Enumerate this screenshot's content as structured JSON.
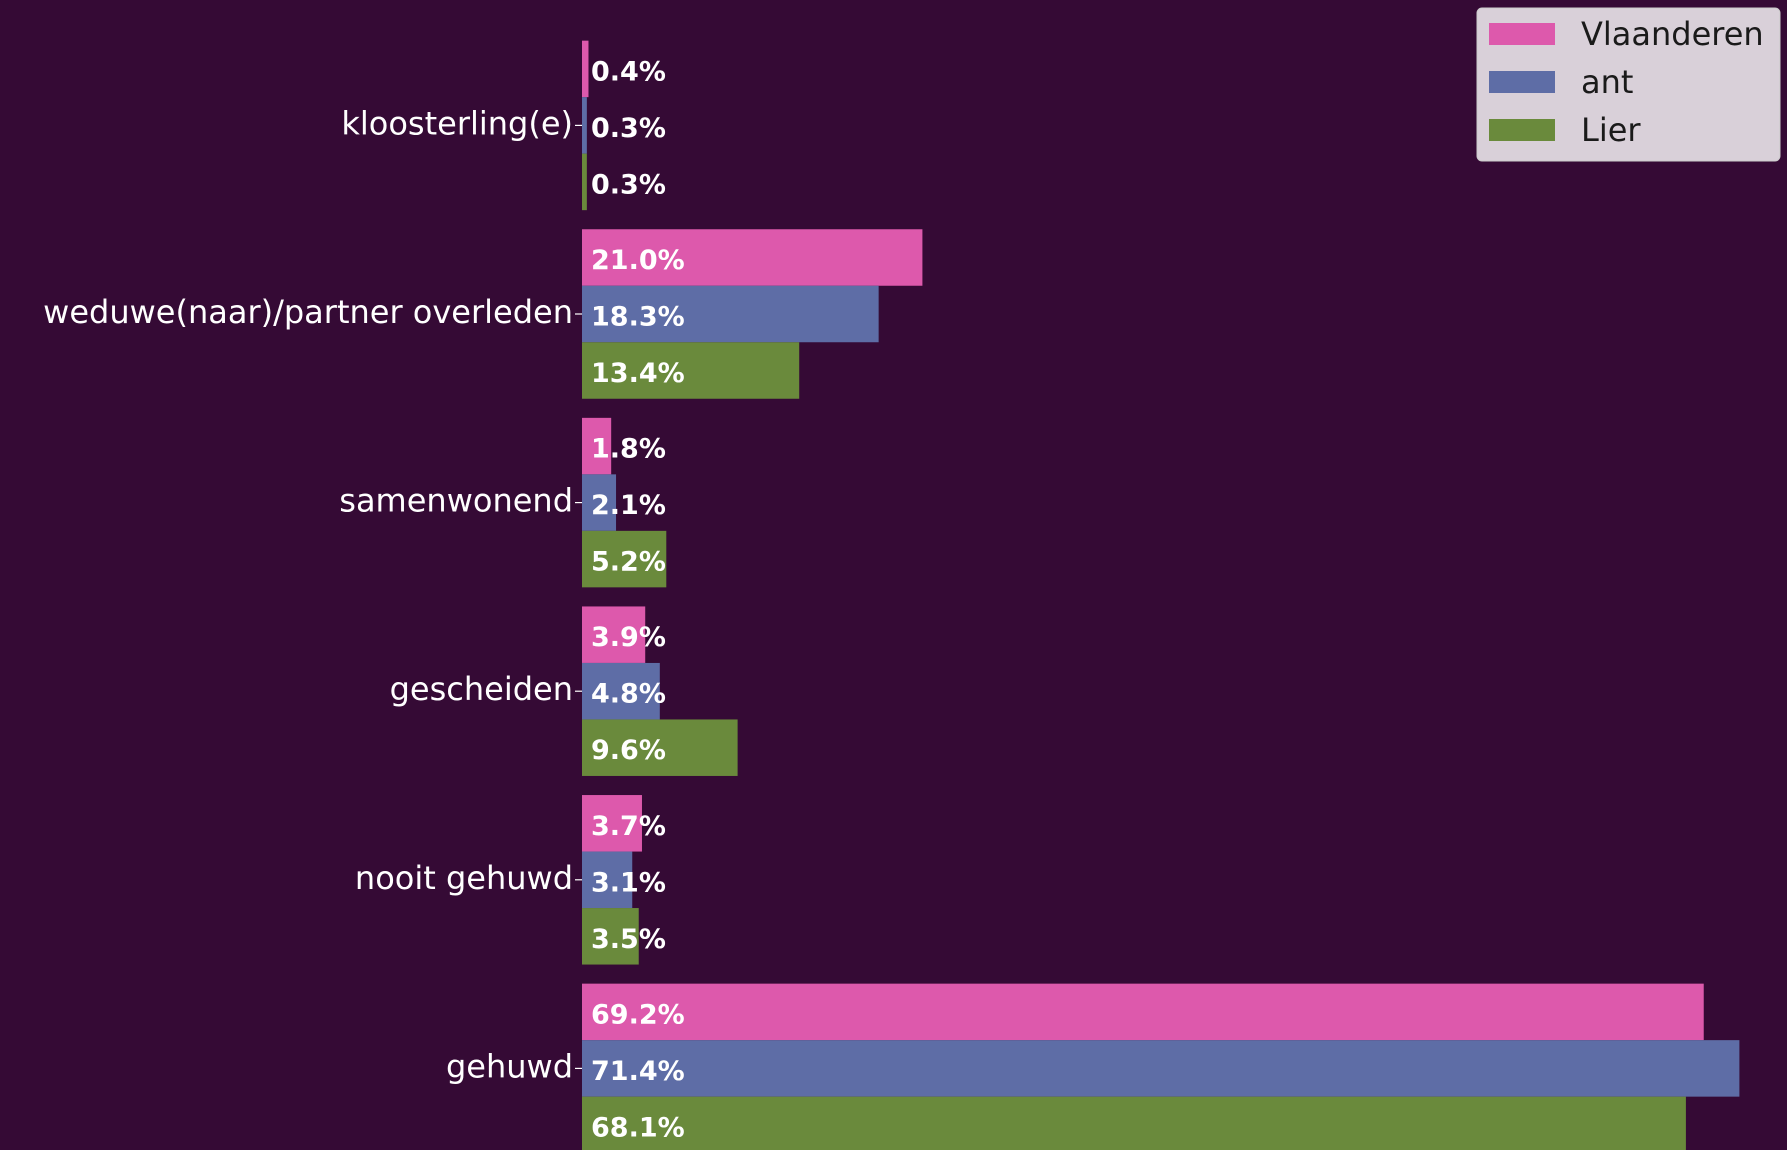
{
  "chart_data": {
    "type": "barh",
    "categories": [
      "kloosterling(e)",
      "weduwe(naar)/partner overleden",
      "samenwonend",
      "gescheiden",
      "nooit gehuwd",
      "gehuwd"
    ],
    "series": [
      {
        "name": "Vlaanderen",
        "color": "#dd59ac",
        "values": [
          0.4,
          21.0,
          1.8,
          3.9,
          3.7,
          69.2
        ],
        "value_labels": [
          "0.4%",
          "21.0%",
          "1.8%",
          "3.9%",
          "3.7%",
          "69.2%"
        ]
      },
      {
        "name": "ant",
        "color": "#5e6da6",
        "values": [
          0.3,
          18.3,
          2.1,
          4.8,
          3.1,
          71.4
        ],
        "value_labels": [
          "0.3%",
          "18.3%",
          "2.1%",
          "4.8%",
          "3.1%",
          "71.4%"
        ]
      },
      {
        "name": "Lier",
        "color": "#6a8a3c",
        "values": [
          0.3,
          13.4,
          5.2,
          9.6,
          3.5,
          68.1
        ],
        "value_labels": [
          "0.3%",
          "13.4%",
          "5.2%",
          "9.6%",
          "3.5%",
          "68.1%"
        ]
      }
    ],
    "legend": "upper right"
  }
}
